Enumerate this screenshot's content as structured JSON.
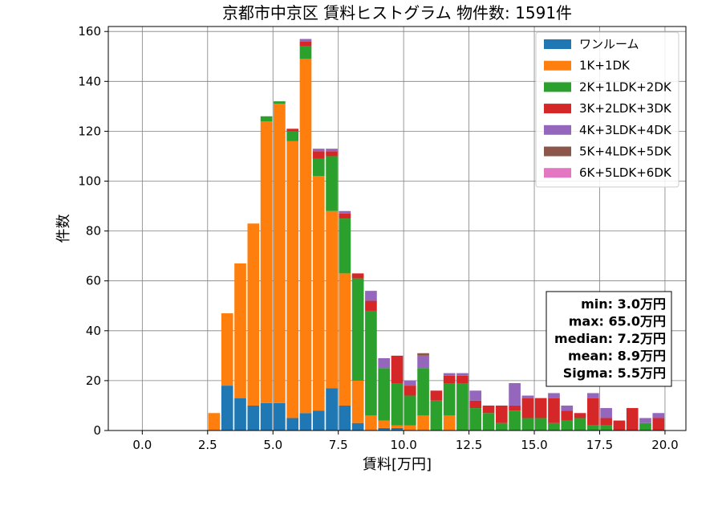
{
  "chart_data": {
    "type": "bar",
    "stacked": true,
    "title": "京都市中京区 賃料ヒストグラム  物件数: 1591件",
    "xlabel": "賃料[万円]",
    "ylabel": "件数",
    "xlim": [
      -1.3,
      20.8
    ],
    "ylim": [
      0,
      162
    ],
    "grid": true,
    "legend_position": "top-right",
    "x_ticks": [
      0.0,
      2.5,
      5.0,
      7.5,
      10.0,
      12.5,
      15.0,
      17.5,
      20.0
    ],
    "x_tick_labels": [
      "0.0",
      "2.5",
      "5.0",
      "7.5",
      "10.0",
      "12.5",
      "15.0",
      "17.5",
      "20.0"
    ],
    "y_ticks": [
      0,
      20,
      40,
      60,
      80,
      100,
      120,
      140,
      160
    ],
    "y_tick_labels": [
      "0",
      "20",
      "40",
      "60",
      "80",
      "100",
      "120",
      "140",
      "160"
    ],
    "bin_width": 0.5,
    "bin_starts": [
      2.5,
      3.0,
      3.5,
      4.0,
      4.5,
      5.0,
      5.5,
      6.0,
      6.5,
      7.0,
      7.5,
      8.0,
      8.5,
      9.0,
      9.5,
      10.0,
      10.5,
      11.0,
      11.5,
      12.0,
      12.5,
      13.0,
      13.5,
      14.0,
      14.5,
      15.0,
      15.5,
      16.0,
      16.5,
      17.0,
      17.5,
      18.0,
      18.5,
      19.0,
      19.5
    ],
    "series": [
      {
        "name": "ワンルーム",
        "color": "#1f77b4",
        "values": [
          0,
          18,
          13,
          10,
          11,
          11,
          5,
          7,
          8,
          17,
          10,
          3,
          0,
          1,
          1,
          0,
          0,
          0,
          0,
          0,
          0,
          0,
          0,
          0,
          0,
          0,
          0,
          0,
          0,
          0,
          0,
          0,
          0,
          0,
          0
        ]
      },
      {
        "name": "1K+1DK",
        "color": "#ff7f0e",
        "values": [
          7,
          29,
          54,
          73,
          113,
          120,
          111,
          142,
          94,
          71,
          53,
          17,
          6,
          3,
          1,
          2,
          6,
          0,
          6,
          0,
          0,
          0,
          0,
          0,
          0,
          0,
          0,
          0,
          0,
          0,
          0,
          0,
          0,
          0,
          0
        ]
      },
      {
        "name": "2K+1LDK+2DK",
        "color": "#2ca02c",
        "values": [
          0,
          0,
          0,
          0,
          2,
          1,
          4,
          5,
          7,
          22,
          22,
          41,
          42,
          21,
          17,
          12,
          19,
          12,
          13,
          19,
          9,
          7,
          3,
          8,
          5,
          5,
          3,
          4,
          5,
          2,
          2,
          0,
          0,
          3,
          0
        ]
      },
      {
        "name": "3K+2LDK+3DK",
        "color": "#d62728",
        "values": [
          0,
          0,
          0,
          0,
          0,
          0,
          1,
          2,
          3,
          2,
          2,
          2,
          4,
          0,
          11,
          4,
          0,
          4,
          3,
          3,
          3,
          3,
          7,
          2,
          8,
          8,
          10,
          4,
          2,
          11,
          3,
          4,
          9,
          0,
          5
        ]
      },
      {
        "name": "4K+3LDK+4DK",
        "color": "#9467bd",
        "values": [
          0,
          0,
          0,
          0,
          0,
          0,
          0,
          1,
          1,
          1,
          1,
          0,
          4,
          4,
          0,
          2,
          5,
          0,
          1,
          1,
          4,
          0,
          0,
          9,
          1,
          0,
          2,
          2,
          0,
          2,
          4,
          0,
          0,
          2,
          2
        ]
      },
      {
        "name": "5K+4LDK+5DK",
        "color": "#8c564b",
        "values": [
          0,
          0,
          0,
          0,
          0,
          0,
          0,
          0,
          0,
          0,
          0,
          0,
          0,
          0,
          0,
          0,
          1,
          0,
          0,
          0,
          0,
          0,
          0,
          0,
          0,
          0,
          0,
          0,
          0,
          0,
          0,
          0,
          0,
          0,
          0
        ]
      },
      {
        "name": "6K+5LDK+6DK",
        "color": "#e377c2",
        "values": [
          0,
          0,
          0,
          0,
          0,
          0,
          0,
          0,
          0,
          0,
          0,
          0,
          0,
          0,
          0,
          0,
          0,
          0,
          0,
          0,
          0,
          0,
          0,
          0,
          0,
          0,
          0,
          0,
          0,
          0,
          0,
          0,
          0,
          0,
          0
        ]
      }
    ],
    "stats_box": [
      "min: 3.0万円",
      "max: 65.0万円",
      "median: 7.2万円",
      "mean: 8.9万円",
      "Sigma: 5.5万円"
    ]
  }
}
